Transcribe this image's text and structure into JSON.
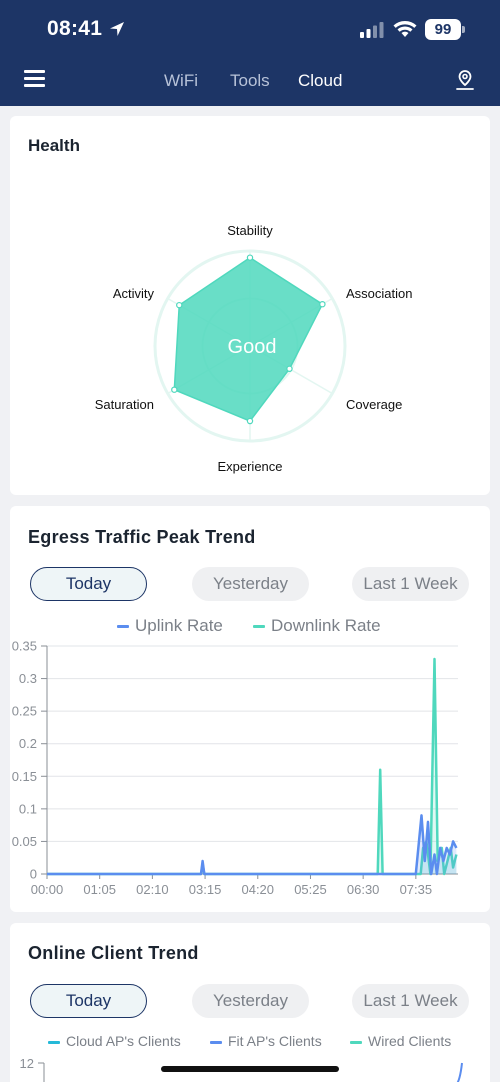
{
  "status_bar": {
    "time": "08:41",
    "battery": "99"
  },
  "nav": {
    "tabs": [
      "WiFi",
      "Tools",
      "Cloud"
    ],
    "active": "Cloud"
  },
  "health": {
    "title": "Health",
    "center_label": "Good",
    "axes": [
      {
        "label": "Stability",
        "value": 0.93
      },
      {
        "label": "Association",
        "value": 0.88
      },
      {
        "label": "Coverage",
        "value": 0.48
      },
      {
        "label": "Experience",
        "value": 0.79
      },
      {
        "label": "Saturation",
        "value": 0.92
      },
      {
        "label": "Activity",
        "value": 0.86
      }
    ],
    "fill_color": "#4fd8bd"
  },
  "egress": {
    "title": "Egress Traffic Peak Trend",
    "periods": [
      "Today",
      "Yesterday",
      "Last 1 Week"
    ],
    "active_period": "Today",
    "legend": [
      "Uplink Rate",
      "Downlink Rate"
    ]
  },
  "chart_data": {
    "type": "line",
    "title": "Egress Traffic Peak Trend",
    "x_ticks": [
      "00:00",
      "01:05",
      "02:10",
      "03:15",
      "04:20",
      "05:25",
      "06:30",
      "07:35"
    ],
    "y_ticks": [
      "0",
      "0.05",
      "0.1",
      "0.15",
      "0.2",
      "0.25",
      "0.3",
      "0.35"
    ],
    "ylim": [
      0,
      0.35
    ],
    "x_unit": "minutes",
    "xlim": [
      0,
      507
    ],
    "series": [
      {
        "name": "Uplink Rate",
        "color": "#5b8def",
        "points": [
          [
            0,
            0
          ],
          [
            190,
            0
          ],
          [
            192,
            0.02
          ],
          [
            194,
            0
          ],
          [
            455,
            0
          ],
          [
            462,
            0.09
          ],
          [
            466,
            0.02
          ],
          [
            470,
            0.08
          ],
          [
            474,
            0
          ],
          [
            478,
            0.03
          ],
          [
            481,
            0
          ],
          [
            485,
            0.04
          ],
          [
            489,
            0.02
          ],
          [
            493,
            0.04
          ],
          [
            497,
            0.03
          ],
          [
            501,
            0.05
          ],
          [
            505,
            0.04
          ]
        ]
      },
      {
        "name": "Downlink Rate",
        "color": "#4fd8bd",
        "points": [
          [
            0,
            0
          ],
          [
            190,
            0
          ],
          [
            192,
            0.015
          ],
          [
            194,
            0
          ],
          [
            408,
            0
          ],
          [
            411,
            0.16
          ],
          [
            414,
            0
          ],
          [
            461,
            0
          ],
          [
            464,
            0.04
          ],
          [
            468,
            0.05
          ],
          [
            473,
            0
          ],
          [
            478,
            0.33
          ],
          [
            482,
            0.02
          ],
          [
            487,
            0.04
          ],
          [
            490,
            0
          ],
          [
            494,
            0.02
          ],
          [
            498,
            0.04
          ],
          [
            501,
            0.01
          ],
          [
            505,
            0.03
          ]
        ]
      }
    ]
  },
  "clients": {
    "title": "Online Client Trend",
    "periods": [
      "Today",
      "Yesterday",
      "Last 1 Week"
    ],
    "active_period": "Today",
    "legend": [
      {
        "name": "Cloud AP's Clients",
        "color": "#25b9d8"
      },
      {
        "name": "Fit AP's Clients",
        "color": "#5b8def"
      },
      {
        "name": "Wired Clients",
        "color": "#4fd8bd"
      }
    ],
    "y_top": "12"
  }
}
